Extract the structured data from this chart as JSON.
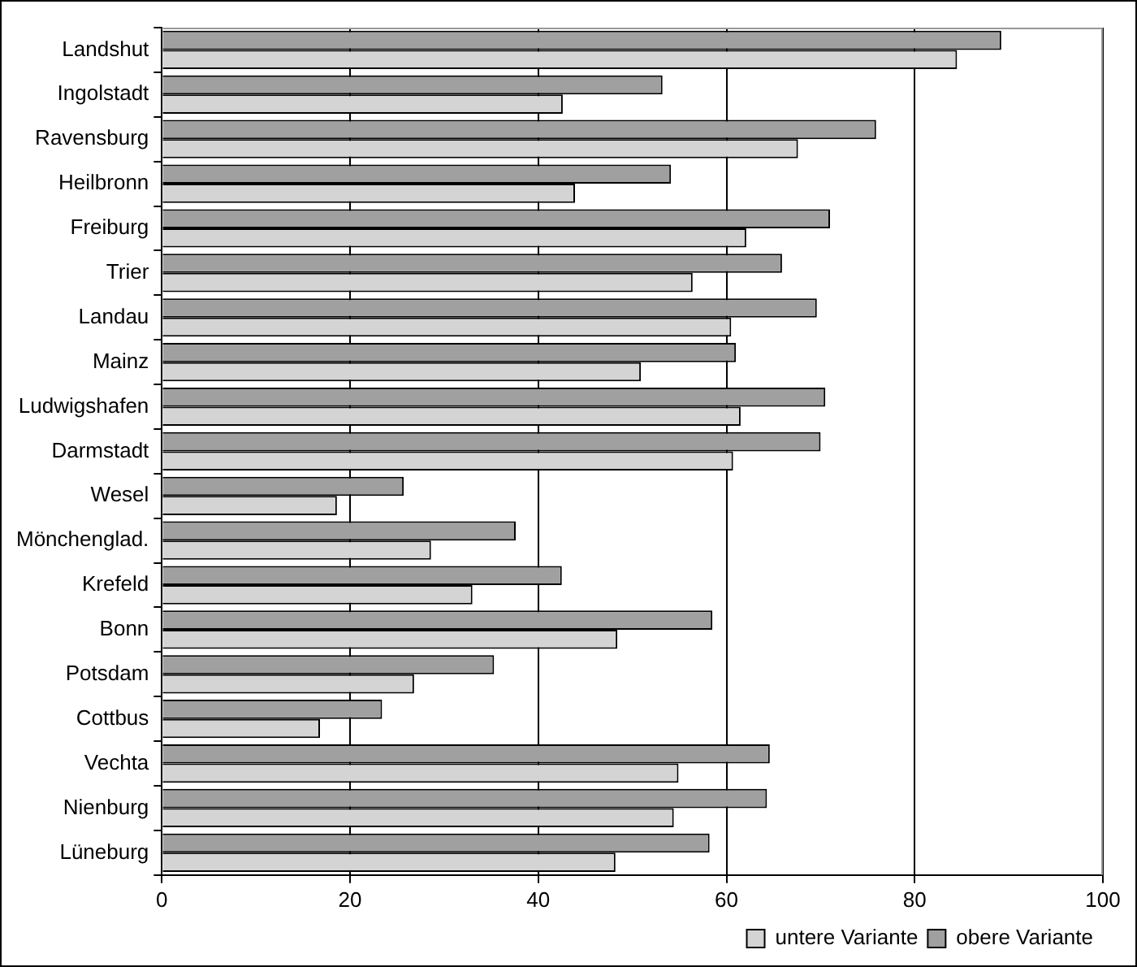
{
  "chart_data": {
    "type": "bar",
    "orientation": "horizontal",
    "categories": [
      "Landshut",
      "Ingolstadt",
      "Ravensburg",
      "Heilbronn",
      "Freiburg",
      "Trier",
      "Landau",
      "Mainz",
      "Ludwigshafen",
      "Darmstadt",
      "Wesel",
      "Mönchenglad.",
      "Krefeld",
      "Bonn",
      "Potsdam",
      "Cottbus",
      "Vechta",
      "Nienburg",
      "Lüneburg"
    ],
    "series": [
      {
        "name": "obere Variante",
        "color": "#a0a0a0",
        "values": [
          89.2,
          53.2,
          75.9,
          54.1,
          71.0,
          65.9,
          69.6,
          61.0,
          70.5,
          70.0,
          25.7,
          37.6,
          42.5,
          58.5,
          35.3,
          23.4,
          64.6,
          64.3,
          58.2
        ]
      },
      {
        "name": "untere Variante",
        "color": "#d4d4d4",
        "values": [
          84.5,
          42.6,
          67.6,
          43.9,
          62.1,
          56.4,
          60.5,
          50.9,
          61.5,
          60.7,
          18.6,
          28.6,
          33.0,
          48.4,
          26.8,
          16.8,
          54.9,
          54.4,
          48.2
        ]
      }
    ],
    "xlim": [
      0,
      100
    ],
    "xticks": [
      0,
      20,
      40,
      60,
      80,
      100
    ],
    "grid": "x",
    "legend": "bottom right"
  }
}
